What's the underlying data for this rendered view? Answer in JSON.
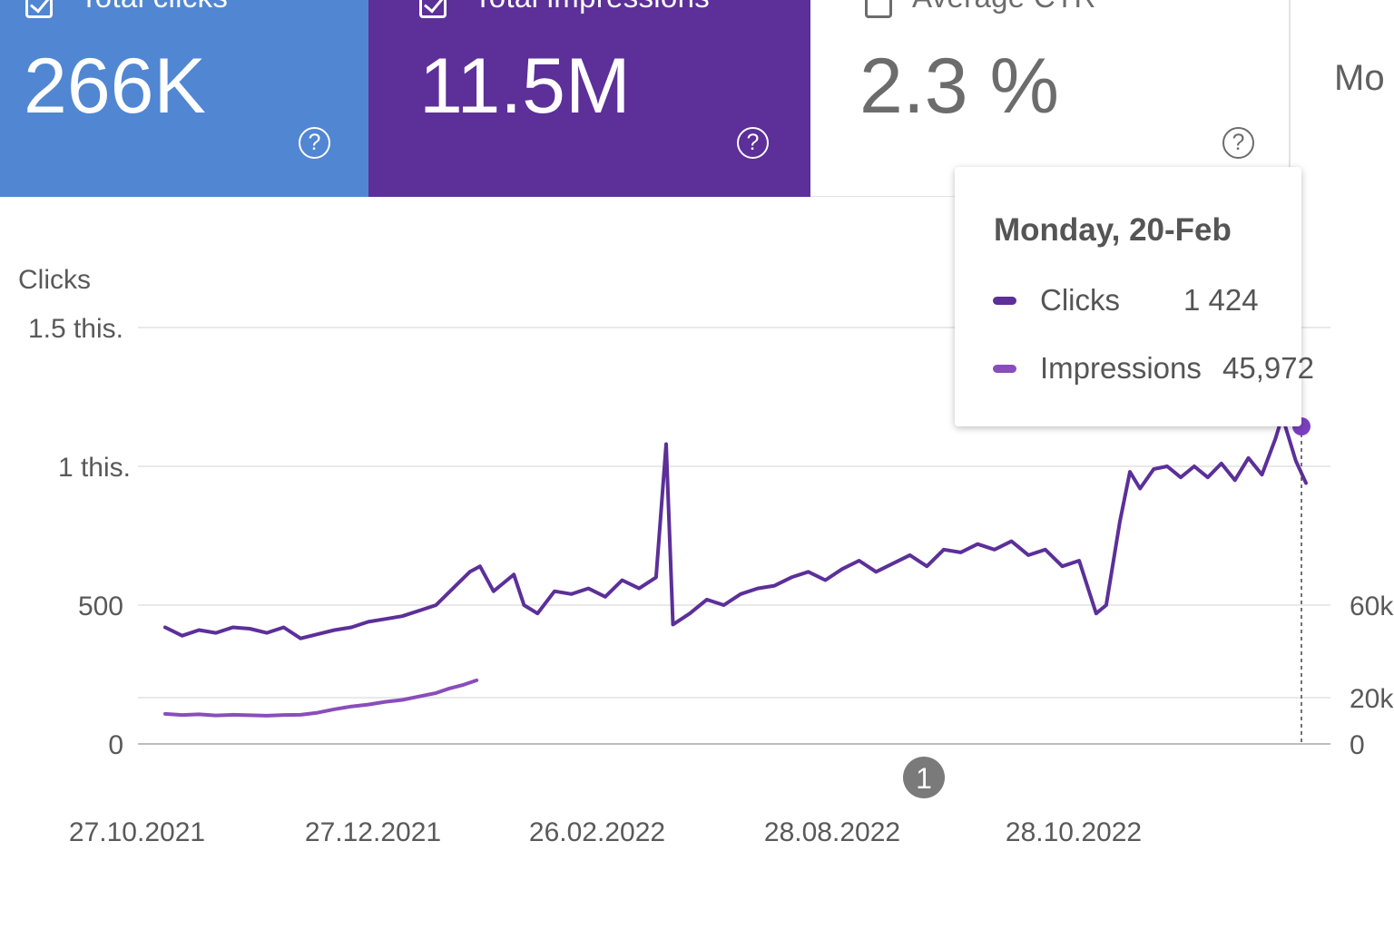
{
  "colors": {
    "clicks_card": "#5186d3",
    "impressions_card": "#5c2f99",
    "clicks_line": "#5c2f99",
    "impressions_line": "#8a4dbb",
    "hover_dot": "#7b3fc1",
    "grid": "#e2e2e2",
    "axis": "#bdbdbd"
  },
  "cards": {
    "clicks": {
      "label": "Total clicks",
      "value": "266K",
      "checked": true,
      "help_icon": "help-circle-icon"
    },
    "impressions": {
      "label": "Total impressions",
      "value": "11.5M",
      "checked": true,
      "help_icon": "help-circle-icon"
    },
    "ctr": {
      "label": "Average CTR",
      "value": "2.3 %",
      "checked": false,
      "help_icon": "help-circle-icon"
    },
    "more": {
      "label": "Mo"
    }
  },
  "tooltip": {
    "date": "Monday, 20-Feb",
    "rows": [
      {
        "label": "Clicks",
        "value": "1 424"
      },
      {
        "label": "Impressions",
        "value": "45,972"
      }
    ]
  },
  "annotation": {
    "label": "1"
  },
  "chart_data": {
    "type": "line",
    "ylabel": "Clicks",
    "y_ticks": [
      "0",
      "500",
      "1 this.",
      "1.5 this."
    ],
    "y_tick_values": [
      0,
      500,
      1000,
      1500
    ],
    "ylim": [
      0,
      1500
    ],
    "y2_ticks": [
      "0",
      "20k",
      "60k"
    ],
    "y2_tick_values": [
      0,
      20000,
      60000
    ],
    "x_ticks": [
      "27.10.2021",
      "27.12.2021",
      "26.02.2022",
      "28.08.2022",
      "28.10.2022"
    ],
    "x_tick_days": [
      0,
      61,
      122,
      183,
      244
    ],
    "grid": true,
    "series": [
      {
        "name": "Clicks",
        "points": [
          [
            0,
            420
          ],
          [
            5,
            390
          ],
          [
            10,
            410
          ],
          [
            15,
            400
          ],
          [
            20,
            420
          ],
          [
            25,
            415
          ],
          [
            30,
            400
          ],
          [
            35,
            420
          ],
          [
            40,
            380
          ],
          [
            45,
            395
          ],
          [
            50,
            410
          ],
          [
            55,
            420
          ],
          [
            60,
            440
          ],
          [
            65,
            450
          ],
          [
            70,
            460
          ],
          [
            75,
            480
          ],
          [
            80,
            500
          ],
          [
            85,
            560
          ],
          [
            90,
            620
          ],
          [
            93,
            640
          ],
          [
            97,
            550
          ],
          [
            100,
            580
          ],
          [
            103,
            610
          ],
          [
            106,
            500
          ],
          [
            110,
            470
          ],
          [
            115,
            550
          ],
          [
            120,
            540
          ],
          [
            125,
            560
          ],
          [
            130,
            530
          ],
          [
            135,
            590
          ],
          [
            140,
            560
          ],
          [
            145,
            600
          ],
          [
            148,
            1080
          ],
          [
            150,
            430
          ],
          [
            155,
            470
          ],
          [
            160,
            520
          ],
          [
            165,
            500
          ],
          [
            170,
            540
          ],
          [
            175,
            560
          ],
          [
            180,
            570
          ],
          [
            185,
            600
          ],
          [
            190,
            620
          ],
          [
            195,
            590
          ],
          [
            200,
            630
          ],
          [
            205,
            660
          ],
          [
            210,
            620
          ],
          [
            215,
            650
          ],
          [
            220,
            680
          ],
          [
            225,
            640
          ],
          [
            230,
            700
          ],
          [
            235,
            690
          ],
          [
            240,
            720
          ],
          [
            245,
            700
          ],
          [
            250,
            730
          ],
          [
            255,
            680
          ],
          [
            260,
            700
          ],
          [
            265,
            640
          ],
          [
            270,
            660
          ],
          [
            275,
            470
          ],
          [
            278,
            500
          ],
          [
            282,
            800
          ],
          [
            285,
            980
          ],
          [
            288,
            920
          ],
          [
            292,
            990
          ],
          [
            296,
            1000
          ],
          [
            300,
            960
          ],
          [
            304,
            1000
          ],
          [
            308,
            960
          ],
          [
            312,
            1010
          ],
          [
            316,
            950
          ],
          [
            320,
            1030
          ],
          [
            324,
            970
          ],
          [
            328,
            1100
          ],
          [
            330,
            1180
          ],
          [
            334,
            1020
          ],
          [
            337,
            940
          ]
        ]
      },
      {
        "name": "Impressions",
        "points": [
          [
            0,
            13000
          ],
          [
            5,
            12500
          ],
          [
            10,
            12800
          ],
          [
            15,
            12300
          ],
          [
            20,
            12600
          ],
          [
            25,
            12400
          ],
          [
            30,
            12200
          ],
          [
            35,
            12500
          ],
          [
            40,
            12600
          ],
          [
            45,
            13500
          ],
          [
            50,
            15000
          ],
          [
            55,
            16200
          ],
          [
            60,
            17000
          ],
          [
            65,
            18200
          ],
          [
            70,
            19000
          ],
          [
            75,
            20500
          ],
          [
            80,
            22000
          ],
          [
            84,
            24000
          ],
          [
            88,
            25500
          ],
          [
            92,
            27500
          ]
        ]
      }
    ],
    "hover": {
      "series": "Clicks",
      "date": "Monday, 20-Feb",
      "value": 1424,
      "impressions": 45972
    }
  }
}
